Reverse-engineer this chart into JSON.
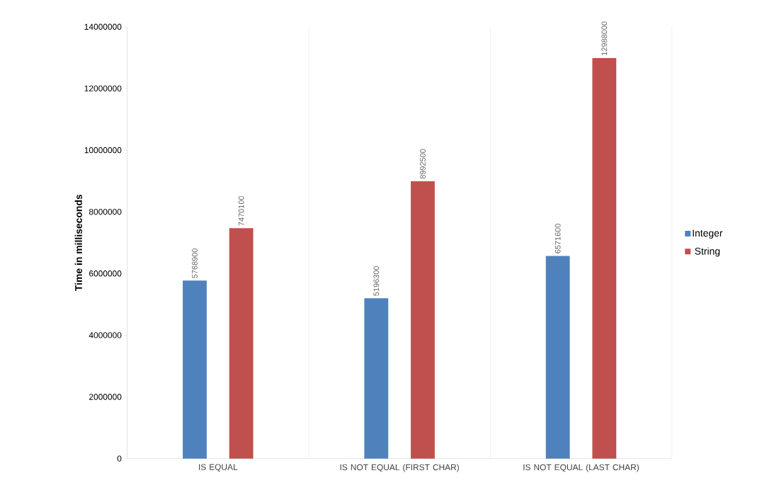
{
  "chart_data": {
    "type": "bar",
    "ylabel": "Time in milliseconds",
    "categories": [
      "IS EQUAL",
      "IS NOT EQUAL (FIRST CHAR)",
      "IS NOT EQUAL (LAST CHAR)"
    ],
    "series": [
      {
        "name": "Integer",
        "color": "#4f81bd",
        "values": [
          5768900,
          5196300,
          6571600
        ]
      },
      {
        "name": "String",
        "color": "#c0504d",
        "values": [
          7470100,
          8992500,
          12988000
        ]
      }
    ],
    "ylim": [
      0,
      14000000
    ],
    "yticks": [
      0,
      2000000,
      4000000,
      6000000,
      8000000,
      10000000,
      12000000,
      14000000
    ],
    "grid": "x",
    "legend": "right",
    "data_labels": true
  }
}
